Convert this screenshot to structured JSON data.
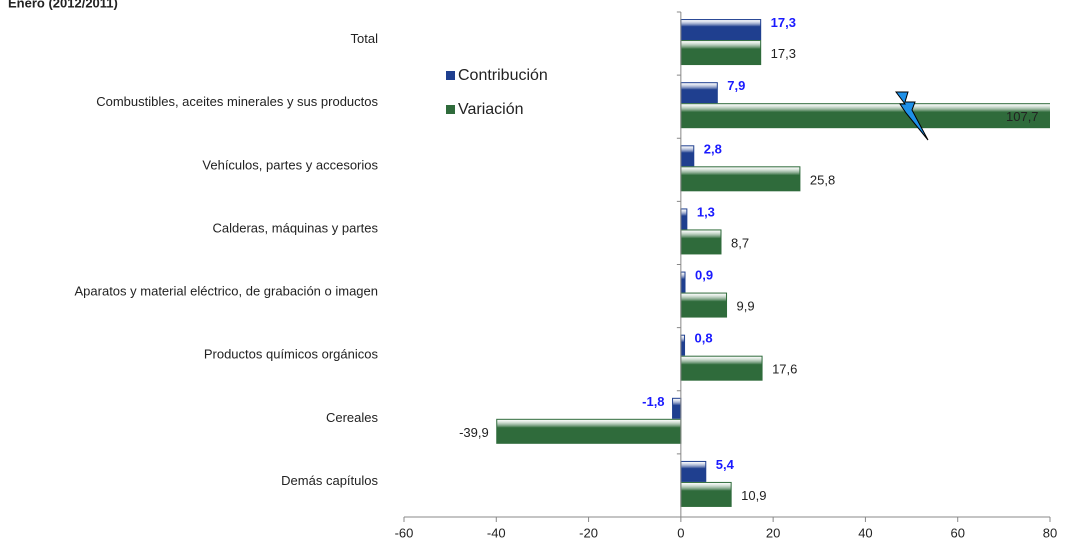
{
  "chart_data": {
    "type": "hbar",
    "title": "Enero (2012/2011)",
    "categories": [
      "Total",
      "Combustibles, aceites minerales y sus productos",
      "Vehículos, partes y accesorios",
      "Calderas, máquinas y partes",
      "Aparatos y material eléctrico, de grabación o imagen",
      "Productos químicos orgánicos",
      "Cereales",
      "Demás capítulos"
    ],
    "series": [
      {
        "name": "Contribución",
        "color": "#1f3f8f",
        "values": [
          17.3,
          7.9,
          2.8,
          1.3,
          0.9,
          0.8,
          -1.8,
          5.4
        ],
        "value_labels": [
          "17,3",
          "7,9",
          "2,8",
          "1,3",
          "0,9",
          "0,8",
          "-1,8",
          "5,4"
        ]
      },
      {
        "name": "Variación",
        "color": "#2f6b3b",
        "values": [
          17.3,
          107.7,
          25.8,
          8.7,
          9.9,
          17.6,
          -39.9,
          10.9
        ],
        "value_labels": [
          "17,3",
          "107,7",
          "25,8",
          "8,7",
          "9,9",
          "17,6",
          "-39,9",
          "10,9"
        ]
      }
    ],
    "xlim": [
      -60,
      80
    ],
    "xticks": [
      -60,
      -40,
      -20,
      0,
      20,
      40,
      60,
      80
    ],
    "legend": "upper left"
  }
}
